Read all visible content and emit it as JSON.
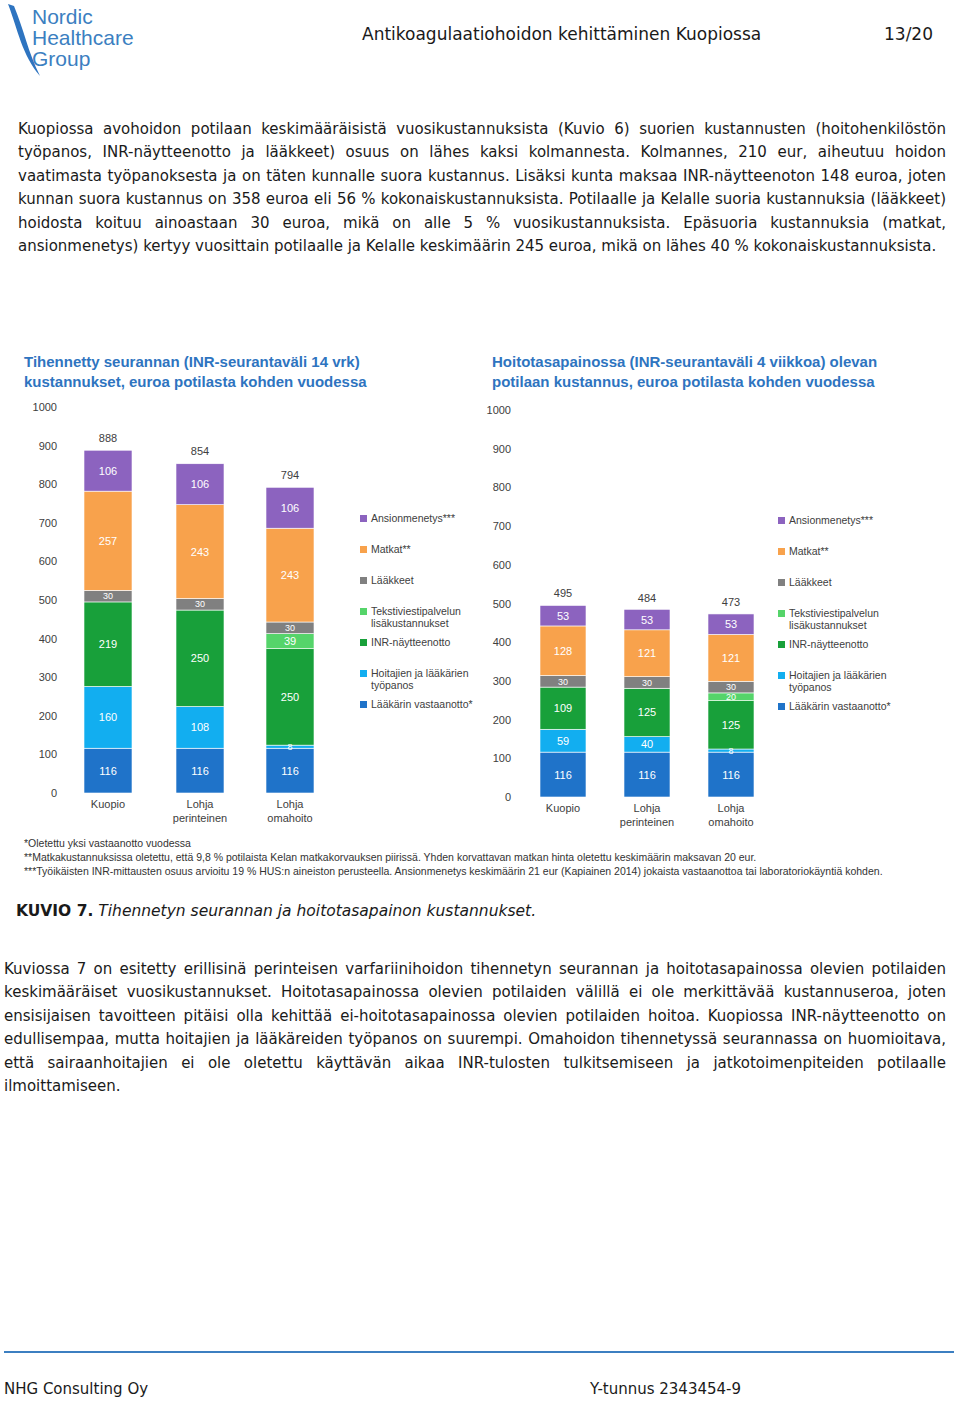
{
  "header": {
    "logo_lines": [
      "Nordic",
      "Healthcare",
      "Group"
    ],
    "title": "Antikoagulaatiohoidon kehittäminen Kuopiossa",
    "page": "13/20"
  },
  "intro": "Kuopiossa avohoidon potilaan keskimääräisistä vuosikustannuksista (Kuvio 6) suorien kustannusten (hoitohenkilöstön työpanos, INR-näytteenotto ja lääkkeet) osuus on lähes kaksi kolmannesta. Kolmannes, 210 eur, aiheutuu hoidon vaatimasta työpanoksesta ja on täten kunnalle suora kustannus. Lisäksi kunta maksaa INR-näytteenoton 148 euroa, joten kunnan suora kustannus on 358 euroa eli 56 % kokonaiskustannuksista. Potilaalle ja Kelalle suoria kustannuksia (lääkkeet) hoidosta koituu ainoastaan 30 euroa, mikä on alle 5 % vuosikustannuksista. Epäsuoria kustannuksia (matkat, ansionmenetys) kertyy vuosittain potilaalle ja Kelalle keskimäärin 245 euroa, mikä on lähes 40 % kokonaiskustannuksista.",
  "chart_data": [
    {
      "type": "bar",
      "title": "Tihennetty seurannan (INR-seurantaväli 14 vrk) kustannukset, euroa potilasta kohden vuodessa",
      "categories": [
        "Kuopio",
        "Lohja perinteinen",
        "Lohja omahoito"
      ],
      "series": [
        {
          "name": "Lääkärin vastaanotto*",
          "color": "#1f73c9",
          "values": [
            116,
            116,
            116
          ]
        },
        {
          "name": "Hoitajien ja lääkärien työpanos",
          "color": "#12aef0",
          "values": [
            160,
            108,
            8
          ]
        },
        {
          "name": "INR-näytteenotto",
          "color": "#18a03a",
          "values": [
            219,
            250,
            250
          ]
        },
        {
          "name": "Tekstiviestipalvelun lisäkustannukset",
          "color": "#55d46a",
          "values": [
            null,
            null,
            39
          ]
        },
        {
          "name": "Lääkkeet",
          "color": "#808080",
          "values": [
            30,
            30,
            30
          ]
        },
        {
          "name": "Matkat**",
          "color": "#f8a24c",
          "values": [
            257,
            243,
            243
          ]
        },
        {
          "name": "Ansionmenetys***",
          "color": "#8c63bf",
          "values": [
            106,
            106,
            106
          ]
        }
      ],
      "totals": [
        888,
        854,
        794
      ],
      "ylim": [
        0,
        1000
      ],
      "yticks": [
        0,
        100,
        200,
        300,
        400,
        500,
        600,
        700,
        800,
        900,
        1000
      ],
      "stacked": true,
      "data_labels": true,
      "legend": "right",
      "grid": false
    },
    {
      "type": "bar",
      "title": "Hoitotasapainossa (INR-seurantaväli 4 viikkoa) olevan potilaan kustannus, euroa potilasta kohden vuodessa",
      "categories": [
        "Kuopio",
        "Lohja perinteinen",
        "Lohja omahoito"
      ],
      "series": [
        {
          "name": "Lääkärin vastaanotto*",
          "color": "#1f73c9",
          "values": [
            116,
            116,
            116
          ]
        },
        {
          "name": "Hoitajien ja lääkärien työpanos",
          "color": "#12aef0",
          "values": [
            59,
            40,
            8
          ]
        },
        {
          "name": "INR-näytteenotto",
          "color": "#18a03a",
          "values": [
            109,
            125,
            125
          ]
        },
        {
          "name": "Tekstiviestipalvelun lisäkustannukset",
          "color": "#55d46a",
          "values": [
            null,
            null,
            20
          ]
        },
        {
          "name": "Lääkkeet",
          "color": "#808080",
          "values": [
            30,
            30,
            30
          ]
        },
        {
          "name": "Matkat**",
          "color": "#f8a24c",
          "values": [
            128,
            121,
            121
          ]
        },
        {
          "name": "Ansionmenetys***",
          "color": "#8c63bf",
          "values": [
            53,
            53,
            53
          ]
        }
      ],
      "totals": [
        495,
        484,
        473
      ],
      "ylim": [
        0,
        1000
      ],
      "yticks": [
        0,
        100,
        200,
        300,
        400,
        500,
        600,
        700,
        800,
        900,
        1000
      ],
      "stacked": true,
      "data_labels": true,
      "legend": "right",
      "grid": false
    }
  ],
  "footnotes": [
    "*Oletettu yksi vastaanotto vuodessa",
    "**Matkakustannuksissa oletettu, että 9,8 % potilaista Kelan matkakorvauksen piirissä. Yhden korvattavan matkan hinta oletettu keskimäärin maksavan 20 eur.",
    "***Työikäisten INR-mittausten osuus arvioitu 19 % HUS:n aineiston perusteella. Ansionmenetys keskimäärin 21 eur (Kapiainen 2014) jokaista vastaanottoa tai laboratoriokäyntiä kohden."
  ],
  "caption": {
    "label": "KUVIO 7.",
    "text": "Tihennetyn seurannan ja hoitotasapainon kustannukset."
  },
  "body": "Kuviossa 7 on esitetty erillisinä perinteisen varfariinihoidon tihennetyn seurannan ja hoitotasapainossa olevien potilaiden keskimääräiset vuosikustannukset. Hoitotasapainossa olevien potilaiden välillä ei ole merkittävää kustannuseroa, joten ensisijaisen tavoitteen pitäisi olla kehittää ei-hoitotasapainossa olevien potilaiden hoitoa. Kuopiossa INR-näytteenotto on edullisempaa, mutta hoitajien ja lääkäreiden työpanos on suurempi. Omahoidon tihennetyssä seurannassa on huomioitava, että sairaanhoitajien ei ole oletettu käyttävän aikaa INR-tulosten tulkitsemiseen ja jatkotoimenpiteiden potilaalle ilmoittamiseen.",
  "footer": {
    "company": "NHG Consulting Oy",
    "business_id": "Y-tunnus 2343454-9"
  }
}
